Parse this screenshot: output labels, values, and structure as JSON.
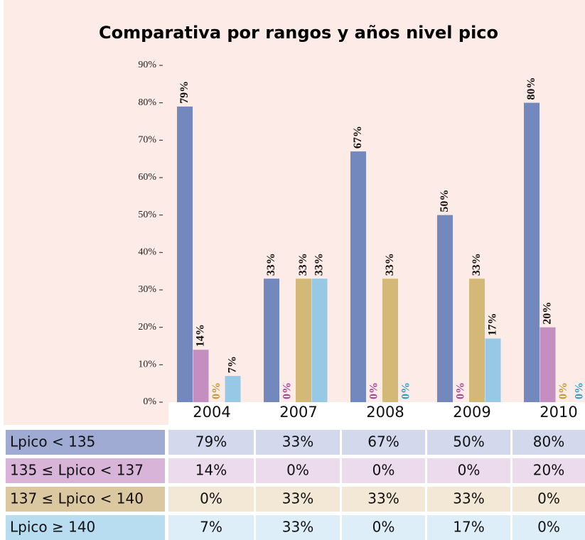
{
  "chart_data": {
    "type": "bar",
    "title": "Comparativa por rangos y años nivel pico",
    "categories": [
      "2004",
      "2007",
      "2008",
      "2009",
      "2010"
    ],
    "series": [
      {
        "name": "Lpico < 135",
        "color": "#7388bd",
        "label_color": "#9b3f93",
        "header_color": "#9fabd3",
        "cell_color": "#d3d8ec",
        "values": [
          79,
          33,
          67,
          50,
          80
        ],
        "value_labels": [
          "79%",
          "33%",
          "67%",
          "50%",
          "80%"
        ]
      },
      {
        "name": "135 ≤ Lpico < 137",
        "color": "#c48fc0",
        "label_color": "#a8419c",
        "header_color": "#d8b4d8",
        "cell_color": "#ecdaed",
        "values": [
          14,
          0,
          0,
          0,
          20
        ],
        "value_labels": [
          "14%",
          "0%",
          "0%",
          "0%",
          "20%"
        ]
      },
      {
        "name": "137 ≤ Lpico < 140",
        "color": "#d4b877",
        "label_color": "#c49a2a",
        "header_color": "#dcc8a0",
        "cell_color": "#f3e8d5",
        "values": [
          0,
          33,
          33,
          33,
          0
        ],
        "value_labels": [
          "0%",
          "33%",
          "33%",
          "33%",
          "0%"
        ]
      },
      {
        "name": "Lpico ≥ 140",
        "color": "#97c8e6",
        "label_color": "#2a9fc9",
        "header_color": "#b8dcf0",
        "cell_color": "#deeef8",
        "values": [
          7,
          33,
          0,
          17,
          0
        ],
        "value_labels": [
          "7%",
          "33%",
          "0%",
          "17%",
          "0%"
        ]
      }
    ],
    "ylim": [
      0,
      90
    ],
    "yticks": [
      {
        "value": 0,
        "label": "0%"
      },
      {
        "value": 10,
        "label": "10%"
      },
      {
        "value": 20,
        "label": "20%"
      },
      {
        "value": 30,
        "label": "30%"
      },
      {
        "value": 40,
        "label": "40%"
      },
      {
        "value": 50,
        "label": "50%"
      },
      {
        "value": 60,
        "label": "60%"
      },
      {
        "value": 70,
        "label": "70%"
      },
      {
        "value": 80,
        "label": "80%"
      },
      {
        "value": 90,
        "label": "90%"
      }
    ],
    "background": "#fcebe6"
  }
}
